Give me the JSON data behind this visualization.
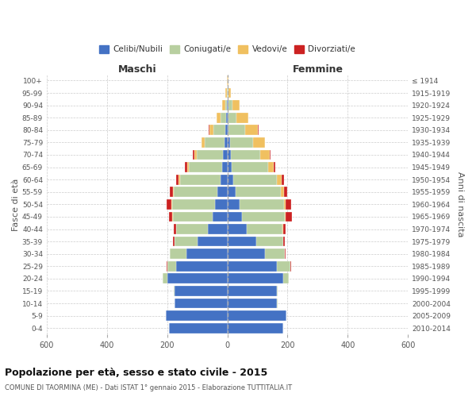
{
  "age_groups": [
    "0-4",
    "5-9",
    "10-14",
    "15-19",
    "20-24",
    "25-29",
    "30-34",
    "35-39",
    "40-44",
    "45-49",
    "50-54",
    "55-59",
    "60-64",
    "65-69",
    "70-74",
    "75-79",
    "80-84",
    "85-89",
    "90-94",
    "95-99",
    "100+"
  ],
  "birth_years": [
    "2010-2014",
    "2005-2009",
    "2000-2004",
    "1995-1999",
    "1990-1994",
    "1985-1989",
    "1980-1984",
    "1975-1979",
    "1970-1974",
    "1965-1969",
    "1960-1964",
    "1955-1959",
    "1950-1954",
    "1945-1949",
    "1940-1944",
    "1935-1939",
    "1930-1934",
    "1925-1929",
    "1920-1924",
    "1915-1919",
    "≤ 1914"
  ],
  "colors": {
    "celibi": "#4472c4",
    "coniugati": "#b8cfa0",
    "vedovi": "#f0c060",
    "divorziati": "#cc2222"
  },
  "maschi": {
    "celibi": [
      195,
      205,
      175,
      175,
      200,
      170,
      135,
      100,
      65,
      50,
      42,
      32,
      22,
      18,
      14,
      10,
      6,
      3,
      2,
      0,
      0
    ],
    "coniugati": [
      0,
      0,
      1,
      3,
      15,
      30,
      55,
      75,
      105,
      130,
      140,
      145,
      135,
      110,
      88,
      65,
      40,
      20,
      6,
      2,
      0
    ],
    "vedovi": [
      0,
      0,
      0,
      0,
      0,
      0,
      0,
      1,
      1,
      2,
      3,
      4,
      5,
      6,
      8,
      10,
      14,
      12,
      8,
      4,
      1
    ],
    "divorziati": [
      0,
      0,
      0,
      0,
      1,
      2,
      2,
      5,
      8,
      12,
      16,
      10,
      8,
      6,
      5,
      2,
      1,
      0,
      0,
      0,
      0
    ]
  },
  "femmine": {
    "celibi": [
      185,
      195,
      165,
      165,
      185,
      165,
      125,
      95,
      65,
      48,
      40,
      28,
      20,
      15,
      12,
      8,
      5,
      3,
      3,
      1,
      1
    ],
    "coniugati": [
      0,
      0,
      1,
      3,
      20,
      45,
      65,
      90,
      118,
      142,
      148,
      150,
      145,
      120,
      98,
      78,
      55,
      28,
      14,
      4,
      0
    ],
    "vedovi": [
      0,
      0,
      0,
      0,
      0,
      0,
      1,
      1,
      2,
      3,
      5,
      10,
      15,
      20,
      30,
      38,
      42,
      38,
      24,
      8,
      2
    ],
    "divorziati": [
      0,
      0,
      0,
      0,
      0,
      1,
      2,
      4,
      8,
      22,
      18,
      10,
      8,
      5,
      4,
      2,
      1,
      1,
      0,
      0,
      0
    ]
  },
  "xlim": 600,
  "title": "Popolazione per età, sesso e stato civile - 2015",
  "subtitle": "COMUNE DI TAORMINA (ME) - Dati ISTAT 1° gennaio 2015 - Elaborazione TUTTITALIA.IT",
  "xlabel_left": "Maschi",
  "xlabel_right": "Femmine",
  "ylabel_left": "Fasce di età",
  "ylabel_right": "Anni di nascita",
  "legend_labels": [
    "Celibi/Nubili",
    "Coniugati/e",
    "Vedovi/e",
    "Divorziati/e"
  ]
}
